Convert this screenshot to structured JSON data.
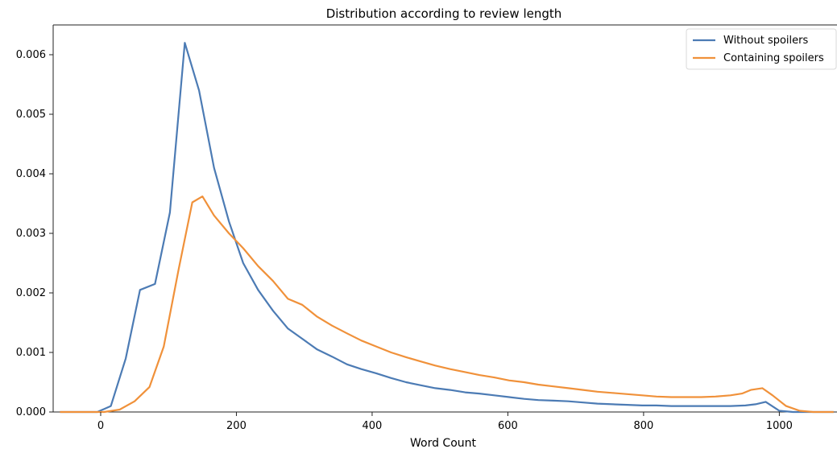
{
  "chart_data": {
    "type": "line",
    "title": "Distribution according to review length",
    "xlabel": "Word Count",
    "ylabel": "",
    "xlim": [
      -70,
      1085
    ],
    "ylim": [
      0,
      0.0065
    ],
    "xticks": [
      0,
      200,
      400,
      600,
      800,
      1000
    ],
    "yticks": [
      0.0,
      0.001,
      0.002,
      0.003,
      0.004,
      0.005,
      0.006
    ],
    "ytick_labels": [
      "0.000",
      "0.001",
      "0.002",
      "0.003",
      "0.004",
      "0.005",
      "0.006"
    ],
    "grid": false,
    "legend_position": "top-right",
    "series": [
      {
        "name": "Without spoilers",
        "color": "#4c7bb4",
        "points": [
          [
            -60,
            0
          ],
          [
            -5,
            0
          ],
          [
            15,
            0.0001
          ],
          [
            37,
            0.0009
          ],
          [
            58,
            0.00205
          ],
          [
            80,
            0.00215
          ],
          [
            102,
            0.00335
          ],
          [
            124,
            0.0062
          ],
          [
            145,
            0.0054
          ],
          [
            167,
            0.0041
          ],
          [
            189,
            0.0032
          ],
          [
            210,
            0.0025
          ],
          [
            232,
            0.00205
          ],
          [
            254,
            0.0017
          ],
          [
            276,
            0.0014
          ],
          [
            297,
            0.00123
          ],
          [
            319,
            0.00105
          ],
          [
            341,
            0.00093
          ],
          [
            363,
            0.0008
          ],
          [
            384,
            0.00072
          ],
          [
            406,
            0.00065
          ],
          [
            428,
            0.00057
          ],
          [
            450,
            0.0005
          ],
          [
            471,
            0.00045
          ],
          [
            493,
            0.0004
          ],
          [
            515,
            0.00037
          ],
          [
            537,
            0.00033
          ],
          [
            558,
            0.00031
          ],
          [
            580,
            0.00028
          ],
          [
            602,
            0.00025
          ],
          [
            624,
            0.00022
          ],
          [
            645,
            0.0002
          ],
          [
            667,
            0.00019
          ],
          [
            689,
            0.00018
          ],
          [
            711,
            0.00016
          ],
          [
            732,
            0.00014
          ],
          [
            754,
            0.00013
          ],
          [
            776,
            0.00012
          ],
          [
            798,
            0.00011
          ],
          [
            819,
            0.00011
          ],
          [
            841,
            0.0001
          ],
          [
            863,
            0.0001
          ],
          [
            885,
            0.0001
          ],
          [
            906,
            0.0001
          ],
          [
            928,
            0.0001
          ],
          [
            950,
            0.00011
          ],
          [
            965,
            0.00013
          ],
          [
            980,
            0.00017
          ],
          [
            1000,
            2e-05
          ],
          [
            1020,
            0
          ],
          [
            1080,
            0
          ]
        ]
      },
      {
        "name": "Containing spoilers",
        "color": "#f0913a",
        "points": [
          [
            -60,
            0
          ],
          [
            5,
            0
          ],
          [
            28,
            4e-05
          ],
          [
            50,
            0.00018
          ],
          [
            72,
            0.00042
          ],
          [
            93,
            0.0011
          ],
          [
            115,
            0.0024
          ],
          [
            135,
            0.00352
          ],
          [
            150,
            0.00362
          ],
          [
            167,
            0.0033
          ],
          [
            189,
            0.003
          ],
          [
            210,
            0.00275
          ],
          [
            232,
            0.00245
          ],
          [
            254,
            0.0022
          ],
          [
            276,
            0.0019
          ],
          [
            297,
            0.0018
          ],
          [
            319,
            0.0016
          ],
          [
            341,
            0.00145
          ],
          [
            363,
            0.00132
          ],
          [
            384,
            0.0012
          ],
          [
            406,
            0.0011
          ],
          [
            428,
            0.001
          ],
          [
            450,
            0.00092
          ],
          [
            471,
            0.00085
          ],
          [
            493,
            0.00078
          ],
          [
            515,
            0.00072
          ],
          [
            537,
            0.00067
          ],
          [
            558,
            0.00062
          ],
          [
            580,
            0.00058
          ],
          [
            602,
            0.00053
          ],
          [
            624,
            0.0005
          ],
          [
            645,
            0.00046
          ],
          [
            667,
            0.00043
          ],
          [
            689,
            0.0004
          ],
          [
            711,
            0.00037
          ],
          [
            732,
            0.00034
          ],
          [
            754,
            0.00032
          ],
          [
            776,
            0.0003
          ],
          [
            798,
            0.00028
          ],
          [
            819,
            0.00026
          ],
          [
            841,
            0.00025
          ],
          [
            863,
            0.00025
          ],
          [
            885,
            0.00025
          ],
          [
            906,
            0.00026
          ],
          [
            928,
            0.00028
          ],
          [
            945,
            0.00031
          ],
          [
            958,
            0.00037
          ],
          [
            975,
            0.0004
          ],
          [
            990,
            0.00028
          ],
          [
            1010,
            0.0001
          ],
          [
            1030,
            2e-05
          ],
          [
            1050,
            0
          ],
          [
            1080,
            0
          ]
        ]
      }
    ]
  }
}
